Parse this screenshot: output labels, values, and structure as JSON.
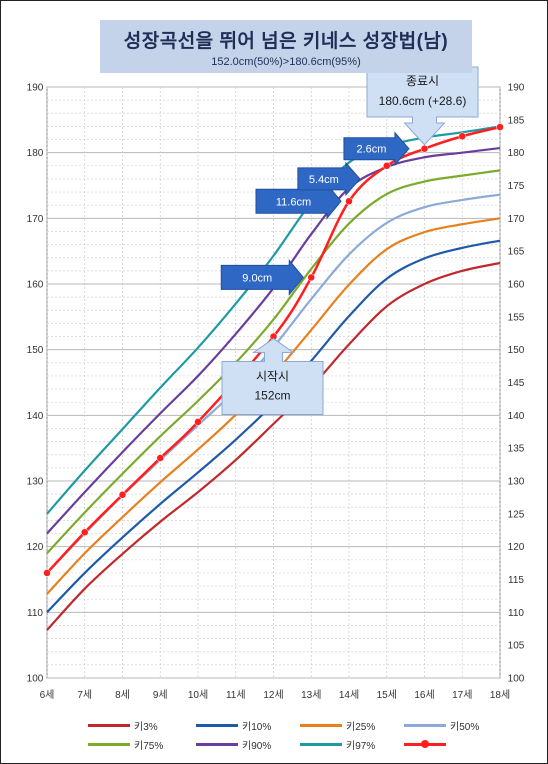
{
  "title": "성장곡선을 뛰어  넘은 키네스 성장법(남)",
  "subtitle": "152.0cm(50%)>180.6cm(95%)",
  "chart_data": {
    "type": "line",
    "x_labels": [
      "6세",
      "7세",
      "8세",
      "9세",
      "10세",
      "11세",
      "12세",
      "13세",
      "14세",
      "15세",
      "16세",
      "17세",
      "18세"
    ],
    "left_axis": {
      "ylim": [
        100,
        190
      ],
      "ticks": [
        100,
        110,
        120,
        130,
        140,
        150,
        160,
        170,
        180,
        190
      ]
    },
    "right_axis": {
      "ylim": [
        100,
        190
      ],
      "ticks": [
        100,
        105,
        110,
        115,
        120,
        125,
        130,
        135,
        140,
        145,
        150,
        155,
        160,
        165,
        170,
        175,
        180,
        185,
        190
      ]
    },
    "grid": true,
    "series": [
      {
        "name": "키3%",
        "color": "#c0292b",
        "marker": false,
        "x": [
          6,
          7,
          8,
          9,
          10,
          11,
          12,
          13,
          14,
          15,
          16,
          17,
          18
        ],
        "y": [
          107.3,
          113.6,
          118.9,
          123.8,
          128.3,
          133.2,
          138.7,
          144.3,
          150.8,
          156.6,
          160.0,
          162.0,
          163.2
        ]
      },
      {
        "name": "키10%",
        "color": "#1f5aa8",
        "marker": false,
        "x": [
          6,
          7,
          8,
          9,
          10,
          11,
          12,
          13,
          14,
          15,
          16,
          17,
          18
        ],
        "y": [
          110.0,
          116.0,
          121.4,
          126.5,
          131.3,
          136.3,
          141.8,
          148.3,
          155.1,
          160.8,
          163.9,
          165.5,
          166.6
        ]
      },
      {
        "name": "키25%",
        "color": "#e8801e",
        "marker": false,
        "x": [
          6,
          7,
          8,
          9,
          10,
          11,
          12,
          13,
          14,
          15,
          16,
          17,
          18
        ],
        "y": [
          112.8,
          119.0,
          124.5,
          129.8,
          134.8,
          140.1,
          146.2,
          153.0,
          159.9,
          165.3,
          167.9,
          169.1,
          170.0
        ]
      },
      {
        "name": "키50%",
        "color": "#8caad8",
        "marker": false,
        "x": [
          6,
          7,
          8,
          9,
          10,
          11,
          12,
          13,
          14,
          15,
          16,
          17,
          18
        ],
        "y": [
          116.0,
          122.0,
          127.8,
          133.2,
          138.5,
          143.9,
          150.4,
          157.7,
          164.5,
          169.3,
          171.7,
          172.8,
          173.6
        ]
      },
      {
        "name": "키75%",
        "color": "#7cab2c",
        "marker": false,
        "x": [
          6,
          7,
          8,
          9,
          10,
          11,
          12,
          13,
          14,
          15,
          16,
          17,
          18
        ],
        "y": [
          119.0,
          125.2,
          131.1,
          136.8,
          142.2,
          148.0,
          154.6,
          162.3,
          169.2,
          173.7,
          175.6,
          176.5,
          177.3
        ]
      },
      {
        "name": "키90%",
        "color": "#6a3e9c",
        "marker": false,
        "x": [
          6,
          7,
          8,
          9,
          10,
          11,
          12,
          13,
          14,
          15,
          16,
          17,
          18
        ],
        "y": [
          122.0,
          128.3,
          134.4,
          140.3,
          146.0,
          152.4,
          159.4,
          167.6,
          174.6,
          177.8,
          179.3,
          180.0,
          180.7
        ]
      },
      {
        "name": "키97%",
        "color": "#1e9aa4",
        "marker": false,
        "x": [
          6,
          7,
          8,
          9,
          10,
          11,
          12,
          13,
          14,
          15,
          16,
          17,
          18
        ],
        "y": [
          125.0,
          131.6,
          137.9,
          144.2,
          150.3,
          157.0,
          164.3,
          172.4,
          178.5,
          181.0,
          182.3,
          183.1,
          184.0
        ]
      },
      {
        "name": "",
        "color": "#ff1f1f",
        "marker": true,
        "x": [
          6,
          7,
          8,
          9,
          10,
          12,
          13,
          14,
          15,
          16,
          17,
          18
        ],
        "y": [
          116.0,
          122.2,
          127.9,
          133.5,
          139.0,
          152.0,
          161.0,
          172.6,
          178.0,
          180.6,
          182.5,
          183.9
        ]
      }
    ],
    "annotations": [
      {
        "text": "9.0cm",
        "x": 13,
        "y": 161.0
      },
      {
        "text": "11.6cm",
        "x": 14,
        "y": 172.6
      },
      {
        "text": "5.4cm",
        "x": 14.5,
        "y": 176.0
      },
      {
        "text": "2.6cm",
        "x": 15.8,
        "y": 180.6
      }
    ],
    "callouts": {
      "start": {
        "line1": "시작시",
        "line2": "152cm"
      },
      "end": {
        "line1": "종료시",
        "line2": "180.6cm (+28.6)"
      }
    }
  },
  "legend": {
    "items": [
      {
        "label": "키3%",
        "color": "#c0292b",
        "marker": false
      },
      {
        "label": "키10%",
        "color": "#1f5aa8",
        "marker": false
      },
      {
        "label": "키25%",
        "color": "#e8801e",
        "marker": false
      },
      {
        "label": "키50%",
        "color": "#8caad8",
        "marker": false
      },
      {
        "label": "키75%",
        "color": "#7cab2c",
        "marker": false
      },
      {
        "label": "키90%",
        "color": "#6a3e9c",
        "marker": false
      },
      {
        "label": "키97%",
        "color": "#1e9aa4",
        "marker": false
      },
      {
        "label": "",
        "color": "#ff1f1f",
        "marker": true
      }
    ]
  }
}
